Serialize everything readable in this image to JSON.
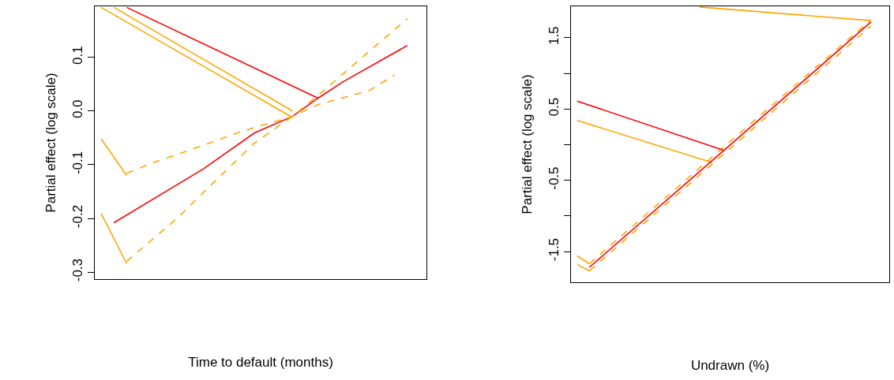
{
  "chart_data": [
    {
      "type": "line",
      "xlabel": "Time to default (months)",
      "ylabel": "Partial effect (log scale)",
      "tick_labels": "y",
      "categories": [
        null,
        null,
        null,
        null,
        null,
        null,
        null,
        null,
        null,
        null,
        null,
        null,
        null,
        null,
        null,
        null,
        null,
        null,
        null,
        null,
        null,
        null,
        null,
        null,
        null,
        null
      ],
      "ylim": [
        -0.313,
        0.195
      ],
      "yticks": [
        -0.3,
        -0.2,
        -0.1,
        {
          "value": 0,
          "label": "0.0"
        },
        0.1
      ],
      "series": [
        {
          "color": "#ff0000",
          "line_style": "solid",
          "values": [
            null,
            -0.208,
            null,
            null,
            null,
            null,
            null,
            null,
            -0.108,
            null,
            null,
            null,
            -0.041,
            null,
            null,
            -0.01,
            null,
            0.024,
            null,
            0.055,
            null,
            null,
            null,
            null,
            0.122,
            null
          ]
        },
        {
          "color": "#ff0000",
          "line_style": "solid",
          "values": [
            null,
            null,
            0.193,
            null,
            null,
            null,
            null,
            null,
            null,
            null,
            null,
            null,
            null,
            null,
            null,
            null,
            null,
            0.024,
            null,
            null,
            null,
            null,
            null,
            null,
            null,
            null
          ]
        },
        {
          "color": "#ffa500",
          "line_style": "dashed",
          "values": [
            null,
            null,
            -0.28,
            null,
            null,
            null,
            -0.199,
            null,
            -0.152,
            null,
            null,
            null,
            -0.06,
            null,
            null,
            -0.01,
            null,
            0.029,
            null,
            null,
            null,
            null,
            null,
            null,
            0.172,
            null
          ]
        },
        {
          "color": "#ffa500",
          "line_style": "dashed",
          "values": [
            null,
            null,
            -0.116,
            null,
            -0.097,
            null,
            null,
            null,
            -0.064,
            null,
            null,
            -0.038,
            null,
            null,
            null,
            -0.01,
            null,
            0.012,
            null,
            null,
            null,
            0.038,
            null,
            0.067,
            null,
            null
          ]
        },
        {
          "color": "#ffa500",
          "line_style": "solid",
          "values": [
            -0.052,
            null,
            -0.12,
            null,
            null,
            null,
            null,
            null,
            null,
            null,
            null,
            null,
            null,
            null,
            null,
            null,
            null,
            null,
            null,
            null,
            null,
            null,
            null,
            null,
            null,
            null
          ]
        },
        {
          "color": "#ffa500",
          "line_style": "solid",
          "values": [
            -0.191,
            null,
            -0.284,
            null,
            null,
            null,
            null,
            null,
            null,
            null,
            null,
            null,
            null,
            null,
            null,
            null,
            null,
            null,
            null,
            null,
            null,
            null,
            null,
            null,
            null,
            null
          ]
        },
        {
          "color": "#ffa500",
          "line_style": "solid",
          "values": [
            0.193,
            null,
            null,
            null,
            null,
            null,
            null,
            null,
            null,
            null,
            null,
            null,
            null,
            null,
            null,
            -0.012,
            null,
            null,
            null,
            null,
            null,
            null,
            null,
            null,
            null,
            null
          ]
        },
        {
          "color": "#ffa500",
          "line_style": "solid",
          "values": [
            null,
            0.193,
            null,
            null,
            null,
            null,
            null,
            null,
            null,
            null,
            null,
            null,
            null,
            null,
            null,
            0.0,
            null,
            null,
            null,
            null,
            null,
            null,
            null,
            null,
            null,
            null
          ]
        }
      ]
    },
    {
      "type": "line",
      "xlabel": "Undrawn (%)",
      "ylabel": "Partial effect (log scale)",
      "tick_labels": "y",
      "categories": [
        null,
        null,
        null,
        null,
        null,
        null,
        null,
        null,
        null,
        null,
        null,
        null,
        null,
        null,
        null,
        null,
        null,
        null,
        null,
        null,
        null,
        null,
        null,
        null,
        null,
        null
      ],
      "ylim": [
        -1.93,
        1.94
      ],
      "yticks": [
        -1.5,
        {
          "value": -1,
          "label": null
        },
        -0.5,
        {
          "value": 0,
          "label": null
        },
        0.5,
        {
          "value": 1,
          "label": null
        },
        1.5
      ],
      "series": [
        {
          "color": "#ffa500",
          "line_style": "dashed",
          "values": [
            null,
            -1.77,
            null,
            null,
            null,
            null,
            null,
            null,
            null,
            null,
            null,
            null,
            -0.13,
            null,
            null,
            null,
            null,
            null,
            null,
            null,
            null,
            null,
            null,
            null,
            1.66,
            null
          ]
        },
        {
          "color": "#ffa500",
          "line_style": "dashed",
          "values": [
            null,
            -1.67,
            null,
            null,
            null,
            null,
            null,
            null,
            null,
            null,
            null,
            null,
            -0.03,
            null,
            null,
            null,
            null,
            null,
            null,
            null,
            null,
            null,
            null,
            null,
            1.75,
            null
          ]
        },
        {
          "color": "#ffa500",
          "line_style": "solid",
          "values": [
            null,
            null,
            null,
            null,
            null,
            null,
            null,
            null,
            null,
            null,
            1.93,
            null,
            null,
            null,
            null,
            null,
            null,
            null,
            null,
            null,
            null,
            null,
            null,
            null,
            1.74,
            null
          ]
        },
        {
          "color": "#ffa500",
          "line_style": "solid",
          "values": [
            0.34,
            null,
            null,
            null,
            null,
            null,
            null,
            null,
            null,
            null,
            null,
            -0.25,
            null,
            null,
            null,
            null,
            null,
            null,
            null,
            null,
            null,
            null,
            null,
            null,
            null,
            null
          ]
        },
        {
          "color": "#ffa500",
          "line_style": "solid",
          "values": [
            -1.56,
            -1.67,
            null,
            null,
            null,
            null,
            null,
            null,
            null,
            null,
            null,
            null,
            null,
            null,
            null,
            null,
            null,
            null,
            null,
            null,
            null,
            null,
            null,
            null,
            null,
            null
          ]
        },
        {
          "color": "#ffa500",
          "line_style": "solid",
          "values": [
            -1.68,
            -1.77,
            null,
            null,
            null,
            null,
            null,
            null,
            null,
            null,
            null,
            null,
            null,
            null,
            null,
            null,
            null,
            null,
            null,
            null,
            null,
            null,
            null,
            null,
            null,
            null
          ]
        },
        {
          "color": "#ff0000",
          "line_style": "solid",
          "values": [
            null,
            -1.72,
            null,
            null,
            null,
            null,
            null,
            null,
            null,
            null,
            null,
            null,
            -0.08,
            null,
            null,
            null,
            null,
            null,
            null,
            null,
            null,
            null,
            null,
            null,
            1.72,
            null
          ]
        },
        {
          "color": "#ff0000",
          "line_style": "solid",
          "values": [
            0.61,
            null,
            null,
            null,
            null,
            null,
            null,
            null,
            null,
            null,
            null,
            null,
            -0.08,
            null,
            null,
            null,
            null,
            null,
            null,
            null,
            null,
            null,
            null,
            null,
            null,
            null
          ]
        }
      ]
    }
  ]
}
